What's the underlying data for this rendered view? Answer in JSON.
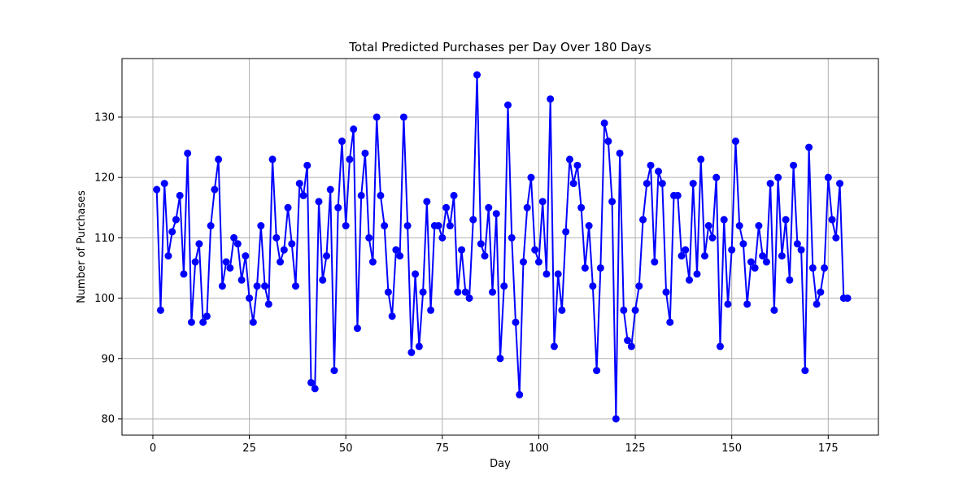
{
  "chart_data": {
    "type": "line",
    "title": "Total Predicted Purchases per Day Over 180 Days",
    "xlabel": "Day",
    "ylabel": "Number of Purchases",
    "xlim": [
      -8,
      188
    ],
    "ylim": [
      77.3,
      139.7
    ],
    "xticks": [
      0,
      25,
      50,
      75,
      100,
      125,
      150,
      175
    ],
    "yticks": [
      80,
      90,
      100,
      110,
      120,
      130
    ],
    "grid": true,
    "marker": "circle",
    "series": [
      {
        "color": "#0000ff",
        "x": [
          1,
          2,
          3,
          4,
          5,
          6,
          7,
          8,
          9,
          10,
          11,
          12,
          13,
          14,
          15,
          16,
          17,
          18,
          19,
          20,
          21,
          22,
          23,
          24,
          25,
          26,
          27,
          28,
          29,
          30,
          31,
          32,
          33,
          34,
          35,
          36,
          37,
          38,
          39,
          40,
          41,
          42,
          43,
          44,
          45,
          46,
          47,
          48,
          49,
          50,
          51,
          52,
          53,
          54,
          55,
          56,
          57,
          58,
          59,
          60,
          61,
          62,
          63,
          64,
          65,
          66,
          67,
          68,
          69,
          70,
          71,
          72,
          73,
          74,
          75,
          76,
          77,
          78,
          79,
          80,
          81,
          82,
          83,
          84,
          85,
          86,
          87,
          88,
          89,
          90,
          91,
          92,
          93,
          94,
          95,
          96,
          97,
          98,
          99,
          100,
          101,
          102,
          103,
          104,
          105,
          106,
          107,
          108,
          109,
          110,
          111,
          112,
          113,
          114,
          115,
          116,
          117,
          118,
          119,
          120,
          121,
          122,
          123,
          124,
          125,
          126,
          127,
          128,
          129,
          130,
          131,
          132,
          133,
          134,
          135,
          136,
          137,
          138,
          139,
          140,
          141,
          142,
          143,
          144,
          145,
          146,
          147,
          148,
          149,
          150,
          151,
          152,
          153,
          154,
          155,
          156,
          157,
          158,
          159,
          160,
          161,
          162,
          163,
          164,
          165,
          166,
          167,
          168,
          169,
          170,
          171,
          172,
          173,
          174,
          175,
          176,
          177,
          178,
          179,
          180
        ],
        "y": [
          118,
          98,
          119,
          107,
          111,
          113,
          117,
          104,
          124,
          96,
          106,
          109,
          96,
          97,
          112,
          118,
          123,
          102,
          106,
          105,
          110,
          109,
          103,
          107,
          100,
          96,
          102,
          112,
          102,
          99,
          123,
          110,
          106,
          108,
          115,
          109,
          102,
          119,
          117,
          122,
          86,
          85,
          116,
          103,
          107,
          118,
          88,
          115,
          126,
          112,
          123,
          128,
          95,
          117,
          124,
          110,
          106,
          130,
          117,
          112,
          101,
          97,
          108,
          107,
          130,
          112,
          91,
          104,
          92,
          101,
          116,
          98,
          112,
          112,
          110,
          115,
          112,
          117,
          101,
          108,
          101,
          100,
          113,
          137,
          109,
          107,
          115,
          101,
          114,
          90,
          102,
          132,
          110,
          96,
          84,
          106,
          115,
          120,
          108,
          106,
          116,
          104,
          133,
          92,
          104,
          98,
          111,
          123,
          119,
          122,
          115,
          105,
          112,
          102,
          88,
          105,
          129,
          126,
          116,
          80,
          124,
          98,
          93,
          92,
          98,
          102,
          113,
          119,
          122,
          106,
          121,
          119,
          101,
          96,
          117,
          117,
          107,
          108,
          103,
          119,
          104,
          123,
          107,
          112,
          110,
          120,
          92,
          113,
          99,
          108,
          126,
          112,
          109,
          99,
          106,
          105,
          112,
          107,
          106,
          119,
          98,
          120,
          107,
          113,
          103,
          122,
          109,
          108,
          88,
          125,
          105,
          99,
          101,
          105,
          120,
          113,
          110,
          119,
          100,
          100
        ]
      }
    ]
  }
}
